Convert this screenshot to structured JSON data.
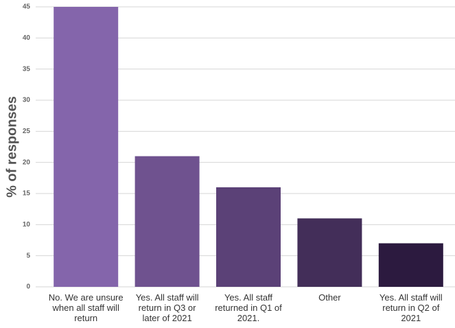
{
  "chart_data": {
    "type": "bar",
    "y_label": "% of responses",
    "categories": [
      "No. We are unsure when all staff will return",
      "Yes. All staff will return in Q3 or later of 2021",
      "Yes. All staff returned in Q1 of 2021.",
      "Other",
      "Yes. All staff will return in Q2 of 2021"
    ],
    "values": [
      45,
      21,
      16,
      11,
      7
    ],
    "colors": [
      "#8465ab",
      "#6f528f",
      "#5b4177",
      "#432e59",
      "#2c1a3f"
    ],
    "ylim": [
      0,
      45
    ],
    "yticks": [
      0,
      5,
      10,
      15,
      20,
      25,
      30,
      35,
      40,
      45
    ],
    "grid": true
  }
}
